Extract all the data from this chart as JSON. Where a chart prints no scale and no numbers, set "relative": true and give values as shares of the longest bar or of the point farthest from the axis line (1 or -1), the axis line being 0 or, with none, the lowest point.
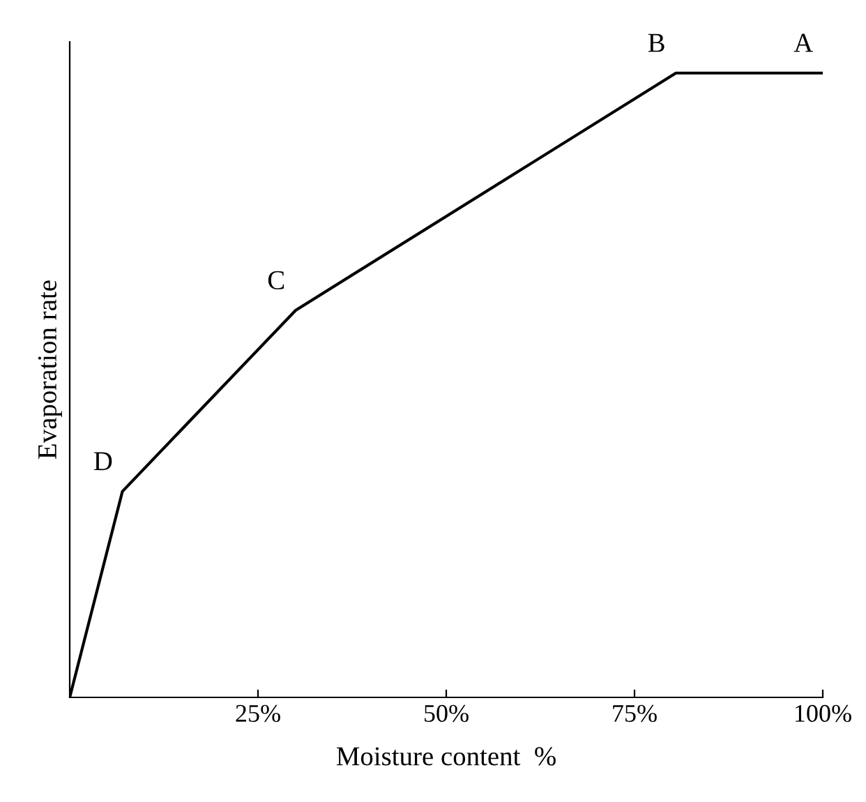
{
  "chart_data": {
    "type": "line",
    "relative": true,
    "xlabel": "Moisture content  %",
    "ylabel": "Evaporation rate",
    "x": [
      0,
      7,
      30,
      80.5,
      100
    ],
    "series": [
      {
        "color": "#000000",
        "values": [
          0,
          0.33,
          0.62,
          1,
          1
        ]
      }
    ],
    "xlim": [
      0,
      100
    ],
    "xticks": [
      {
        "value": 25,
        "label": "25%"
      },
      {
        "value": 50,
        "label": "50%"
      },
      {
        "value": 75,
        "label": "75%"
      },
      {
        "value": 100,
        "label": "100%"
      }
    ],
    "grid": false,
    "legend": false,
    "marker": "none",
    "line_style": "solid",
    "annotations": [
      {
        "text": "D",
        "x": 7,
        "y": 0.33
      },
      {
        "text": "C",
        "x": 30,
        "y": 0.62
      },
      {
        "text": "B",
        "x": 80.5,
        "y": 1
      },
      {
        "text": "A",
        "x": 100,
        "y": 1
      }
    ]
  }
}
